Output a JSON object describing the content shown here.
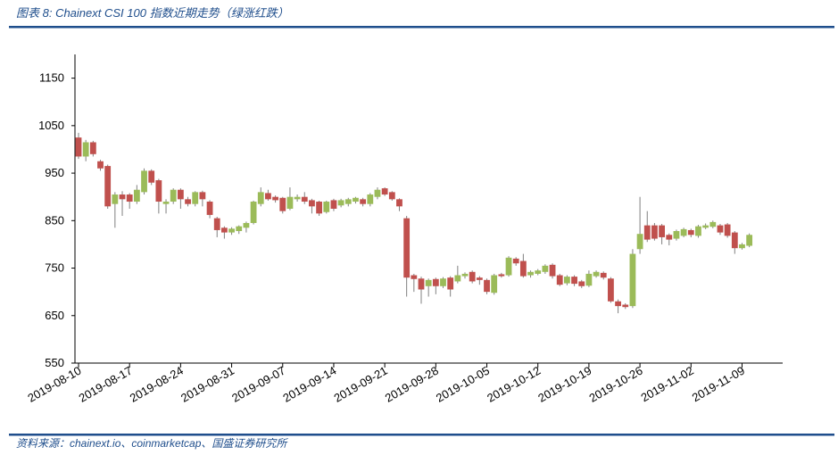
{
  "chart_data": {
    "type": "candlestick",
    "title": "图表 8:  Chainext CSI 100 指数近期走势（绿涨红跌）",
    "source": "资料来源：chainext.io、coinmarketcap、国盛证券研究所",
    "x": [
      "2019-08-10",
      "2019-08-11",
      "2019-08-12",
      "2019-08-13",
      "2019-08-14",
      "2019-08-15",
      "2019-08-16",
      "2019-08-17",
      "2019-08-18",
      "2019-08-19",
      "2019-08-20",
      "2019-08-21",
      "2019-08-22",
      "2019-08-23",
      "2019-08-24",
      "2019-08-25",
      "2019-08-26",
      "2019-08-27",
      "2019-08-28",
      "2019-08-29",
      "2019-08-30",
      "2019-08-31",
      "2019-09-01",
      "2019-09-02",
      "2019-09-03",
      "2019-09-04",
      "2019-09-05",
      "2019-09-06",
      "2019-09-07",
      "2019-09-08",
      "2019-09-09",
      "2019-09-10",
      "2019-09-11",
      "2019-09-12",
      "2019-09-13",
      "2019-09-14",
      "2019-09-15",
      "2019-09-16",
      "2019-09-17",
      "2019-09-18",
      "2019-09-19",
      "2019-09-20",
      "2019-09-21",
      "2019-09-22",
      "2019-09-23",
      "2019-09-24",
      "2019-09-25",
      "2019-09-26",
      "2019-09-27",
      "2019-09-28",
      "2019-09-29",
      "2019-09-30",
      "2019-10-01",
      "2019-10-02",
      "2019-10-03",
      "2019-10-04",
      "2019-10-05",
      "2019-10-06",
      "2019-10-07",
      "2019-10-08",
      "2019-10-09",
      "2019-10-10",
      "2019-10-11",
      "2019-10-12",
      "2019-10-13",
      "2019-10-14",
      "2019-10-15",
      "2019-10-16",
      "2019-10-17",
      "2019-10-18",
      "2019-10-19",
      "2019-10-20",
      "2019-10-21",
      "2019-10-22",
      "2019-10-23",
      "2019-10-24",
      "2019-10-25",
      "2019-10-26",
      "2019-10-27",
      "2019-10-28",
      "2019-10-29",
      "2019-10-30",
      "2019-10-31",
      "2019-11-01",
      "2019-11-02",
      "2019-11-03",
      "2019-11-04",
      "2019-11-05",
      "2019-11-06",
      "2019-11-07",
      "2019-11-08",
      "2019-11-09",
      "2019-11-10"
    ],
    "open": [
      1025,
      985,
      1015,
      975,
      965,
      885,
      905,
      905,
      890,
      910,
      955,
      935,
      885,
      890,
      915,
      895,
      885,
      910,
      890,
      855,
      835,
      825,
      828,
      835,
      845,
      885,
      908,
      900,
      898,
      875,
      895,
      900,
      893,
      890,
      868,
      893,
      882,
      885,
      890,
      895,
      885,
      900,
      918,
      910,
      895,
      855,
      735,
      728,
      712,
      727,
      712,
      730,
      722,
      733,
      742,
      730,
      725,
      698,
      737,
      735,
      770,
      765,
      735,
      738,
      742,
      757,
      735,
      718,
      732,
      722,
      713,
      733,
      740,
      728,
      680,
      673,
      670,
      790,
      840,
      840,
      840,
      820,
      812,
      818,
      830,
      818,
      835,
      837,
      840,
      842,
      825,
      792,
      797
    ],
    "high": [
      1035,
      1020,
      1018,
      978,
      968,
      910,
      912,
      908,
      925,
      960,
      958,
      938,
      895,
      918,
      918,
      900,
      912,
      913,
      893,
      858,
      838,
      836,
      840,
      848,
      892,
      920,
      915,
      903,
      900,
      920,
      905,
      910,
      896,
      892,
      892,
      896,
      896,
      898,
      900,
      898,
      908,
      920,
      920,
      912,
      897,
      860,
      738,
      732,
      728,
      730,
      731,
      733,
      755,
      741,
      745,
      733,
      728,
      738,
      740,
      775,
      773,
      780,
      745,
      748,
      758,
      760,
      738,
      735,
      735,
      725,
      745,
      745,
      743,
      731,
      684,
      676,
      790,
      900,
      870,
      845,
      843,
      823,
      831,
      835,
      833,
      841,
      844,
      850,
      843,
      845,
      828,
      803,
      823
    ],
    "low": [
      980,
      975,
      985,
      955,
      875,
      835,
      860,
      875,
      885,
      905,
      925,
      865,
      865,
      885,
      875,
      880,
      880,
      880,
      855,
      815,
      812,
      820,
      822,
      825,
      842,
      880,
      892,
      888,
      865,
      872,
      890,
      885,
      865,
      860,
      865,
      870,
      878,
      880,
      886,
      880,
      880,
      895,
      902,
      892,
      870,
      690,
      700,
      675,
      690,
      695,
      708,
      690,
      718,
      728,
      718,
      715,
      695,
      694,
      730,
      732,
      755,
      730,
      730,
      735,
      738,
      728,
      712,
      714,
      712,
      708,
      710,
      730,
      726,
      677,
      655,
      664,
      666,
      780,
      805,
      808,
      800,
      798,
      808,
      815,
      815,
      814,
      832,
      834,
      820,
      814,
      780,
      789,
      794
    ],
    "close": [
      985,
      1015,
      990,
      960,
      880,
      905,
      895,
      890,
      915,
      955,
      930,
      890,
      890,
      915,
      895,
      885,
      910,
      895,
      862,
      830,
      825,
      833,
      838,
      845,
      890,
      910,
      895,
      893,
      870,
      900,
      900,
      890,
      880,
      865,
      890,
      875,
      893,
      895,
      898,
      885,
      905,
      915,
      905,
      895,
      880,
      730,
      727,
      705,
      725,
      712,
      728,
      705,
      735,
      738,
      722,
      725,
      700,
      735,
      733,
      772,
      760,
      733,
      742,
      745,
      755,
      733,
      715,
      732,
      717,
      712,
      738,
      742,
      730,
      680,
      670,
      668,
      780,
      822,
      810,
      812,
      815,
      810,
      828,
      832,
      820,
      838,
      840,
      847,
      825,
      818,
      792,
      800,
      820
    ],
    "up_color": "#9bbb59",
    "down_color": "#c0504d",
    "wick_color": "#808080",
    "xticks": [
      "2019-08-10",
      "2019-08-17",
      "2019-08-24",
      "2019-08-31",
      "2019-09-07",
      "2019-09-14",
      "2019-09-21",
      "2019-09-28",
      "2019-10-05",
      "2019-10-12",
      "2019-10-19",
      "2019-10-26",
      "2019-11-02",
      "2019-11-09"
    ],
    "ylim": [
      550,
      1200
    ],
    "yticks": [
      550,
      650,
      750,
      850,
      950,
      1050,
      1150
    ],
    "grid": false
  }
}
